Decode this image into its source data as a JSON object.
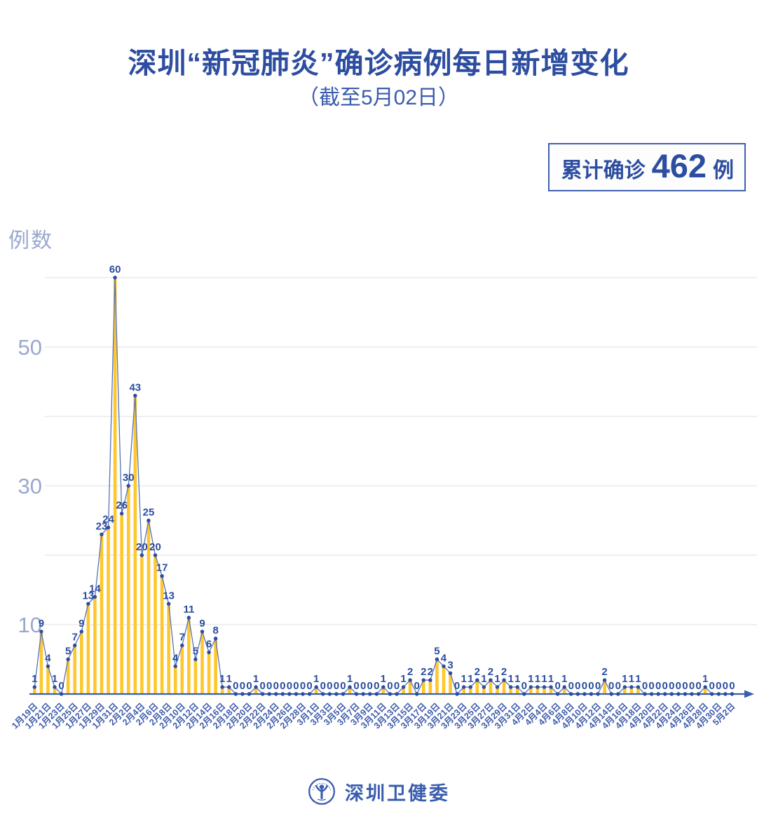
{
  "header": {
    "title": "深圳“新冠肺炎”确诊病例每日新增变化",
    "subtitle": "（截至5月02日）",
    "badge": {
      "label": "累计确诊",
      "value": "462",
      "unit": "例"
    }
  },
  "footer": {
    "org": "深圳卫健委",
    "logo": "shenzhen-health-commission-logo"
  },
  "chart_data": {
    "type": "line",
    "style": "lollipop-line (yellow value bars + blue line + point dots + value labels on every point)",
    "title": "深圳“新冠肺炎”确诊病例每日新增变化",
    "subtitle": "（截至5月02日）",
    "ylabel": "例数",
    "xlabel": "",
    "ylim": [
      0,
      62
    ],
    "grid": true,
    "grid_values": [
      10,
      20,
      30,
      40,
      50,
      60
    ],
    "ytick_labeled": [
      10,
      30,
      50
    ],
    "x_label_every": 2,
    "legend_position": "none",
    "categories": [
      "1月19日",
      "1月20日",
      "1月21日",
      "1月22日",
      "1月23日",
      "1月24日",
      "1月25日",
      "1月26日",
      "1月27日",
      "1月28日",
      "1月29日",
      "1月30日",
      "1月31日",
      "2月1日",
      "2月2日",
      "2月3日",
      "2月4日",
      "2月5日",
      "2月6日",
      "2月7日",
      "2月8日",
      "2月9日",
      "2月10日",
      "2月11日",
      "2月12日",
      "2月13日",
      "2月14日",
      "2月15日",
      "2月16日",
      "2月17日",
      "2月18日",
      "2月19日",
      "2月20日",
      "2月21日",
      "2月22日",
      "2月23日",
      "2月24日",
      "2月25日",
      "2月26日",
      "2月27日",
      "2月28日",
      "2月29日",
      "3月1日",
      "3月2日",
      "3月3日",
      "3月4日",
      "3月5日",
      "3月6日",
      "3月7日",
      "3月8日",
      "3月9日",
      "3月10日",
      "3月11日",
      "3月12日",
      "3月13日",
      "3月14日",
      "3月15日",
      "3月16日",
      "3月17日",
      "3月18日",
      "3月19日",
      "3月20日",
      "3月21日",
      "3月22日",
      "3月23日",
      "3月24日",
      "3月25日",
      "3月26日",
      "3月27日",
      "3月28日",
      "3月29日",
      "3月30日",
      "3月31日",
      "4月1日",
      "4月2日",
      "4月3日",
      "4月4日",
      "4月5日",
      "4月6日",
      "4月7日",
      "4月8日",
      "4月9日",
      "4月10日",
      "4月11日",
      "4月12日",
      "4月13日",
      "4月14日",
      "4月15日",
      "4月16日",
      "4月17日",
      "4月18日",
      "4月19日",
      "4月20日",
      "4月21日",
      "4月22日",
      "4月23日",
      "4月24日",
      "4月25日",
      "4月26日",
      "4月27日",
      "4月28日",
      "4月29日",
      "4月30日",
      "5月1日",
      "5月2日"
    ],
    "values": [
      1,
      9,
      4,
      1,
      0,
      5,
      7,
      9,
      13,
      14,
      23,
      24,
      60,
      26,
      30,
      43,
      20,
      25,
      20,
      17,
      13,
      4,
      7,
      11,
      5,
      9,
      6,
      8,
      1,
      1,
      0,
      0,
      0,
      1,
      0,
      0,
      0,
      0,
      0,
      0,
      0,
      0,
      1,
      0,
      0,
      0,
      0,
      1,
      0,
      0,
      0,
      0,
      1,
      0,
      0,
      1,
      2,
      0,
      2,
      2,
      5,
      4,
      3,
      0,
      1,
      1,
      2,
      1,
      2,
      1,
      2,
      1,
      1,
      0,
      1,
      1,
      1,
      1,
      0,
      1,
      0,
      0,
      0,
      0,
      0,
      2,
      0,
      0,
      1,
      1,
      1,
      0,
      0,
      0,
      0,
      0,
      0,
      0,
      0,
      0,
      1,
      0,
      0,
      0,
      0
    ],
    "total": 462,
    "colors": {
      "bar": "#FFC72C",
      "line": "#5474BB",
      "point": "#2B4C9F",
      "value_label": "#2B4C9F",
      "axis": "#3A5DAE",
      "grid": "#EAEAF1",
      "ytick": "#9AA8CF",
      "xtick": "#3F5CAB",
      "title": "#2D4DA0"
    }
  }
}
